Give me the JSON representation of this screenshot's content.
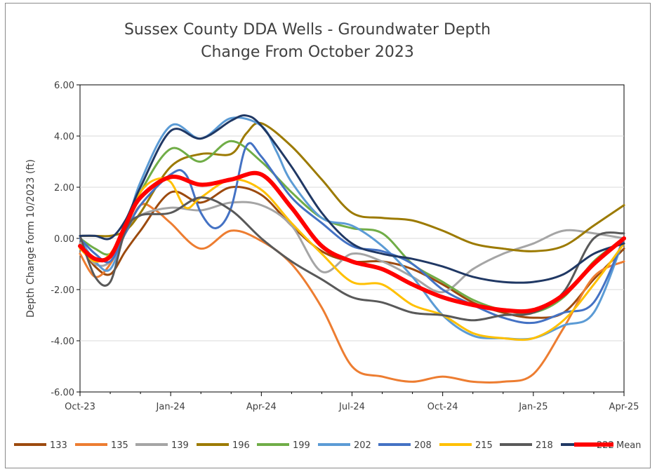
{
  "chart_data": {
    "type": "line",
    "title_line1": "Sussex County DDA Wells - Groundwater Depth",
    "title_line2": "Change From October 2023",
    "ylabel": "Depth Change form 10/2023 (ft)",
    "xlabel": "",
    "ylim": [
      -6,
      6
    ],
    "yticks": [
      6,
      4,
      2,
      0,
      -2,
      -4,
      -6
    ],
    "ytick_labels": [
      "6.00",
      "4.00",
      "2.00",
      "0.00",
      "-2.00",
      "-4.00",
      "-6.00"
    ],
    "xlim": [
      0,
      18
    ],
    "xticks": [
      0,
      3,
      6,
      9,
      12,
      15,
      18
    ],
    "xtick_labels": [
      "Oct-23",
      "Jan-24",
      "Apr-24",
      "Jul-24",
      "Oct-24",
      "Jan-25",
      "Apr-25"
    ],
    "grid": "horizontal",
    "legend_position": "bottom",
    "series": [
      {
        "name": "133",
        "color": "#9C4A0E",
        "width": 3,
        "x": [
          0,
          0.5,
          1,
          1.5,
          2,
          3,
          4,
          5,
          6,
          7,
          8,
          9,
          10,
          11,
          12,
          13,
          14,
          15,
          16,
          17,
          18
        ],
        "y": [
          -0.3,
          -1.1,
          -1.4,
          -0.5,
          0.3,
          1.8,
          1.4,
          2.0,
          1.7,
          0.5,
          -0.5,
          -0.9,
          -0.9,
          -1.2,
          -1.8,
          -2.5,
          -2.9,
          -3.1,
          -2.9,
          -1.6,
          -0.4
        ]
      },
      {
        "name": "135",
        "color": "#ED7D31",
        "width": 3,
        "x": [
          0,
          0.5,
          1,
          1.5,
          2,
          2.5,
          3,
          4,
          5,
          6,
          7,
          8,
          9,
          10,
          11,
          12,
          13,
          14,
          15,
          16,
          17,
          18
        ],
        "y": [
          -0.6,
          -1.5,
          -1.0,
          0.2,
          1.3,
          1.1,
          0.6,
          -0.4,
          0.3,
          -0.1,
          -1.0,
          -2.7,
          -5.0,
          -5.4,
          -5.6,
          -5.4,
          -5.6,
          -5.6,
          -5.3,
          -3.5,
          -1.5,
          -0.9
        ]
      },
      {
        "name": "139",
        "color": "#A5A5A5",
        "width": 3,
        "x": [
          0,
          0.5,
          1,
          1.5,
          2,
          3,
          4,
          5,
          6,
          7,
          8,
          9,
          10,
          11,
          12,
          13,
          14,
          15,
          16,
          17,
          18
        ],
        "y": [
          -0.2,
          -1.0,
          -0.9,
          0.2,
          0.9,
          1.2,
          1.1,
          1.4,
          1.3,
          0.5,
          -1.3,
          -0.6,
          -0.9,
          -1.5,
          -2.1,
          -1.2,
          -0.6,
          -0.2,
          0.3,
          0.2,
          0.0
        ]
      },
      {
        "name": "196",
        "color": "#9C7A00",
        "width": 3,
        "x": [
          0,
          0.5,
          1,
          1.5,
          2,
          3,
          4,
          5,
          5.5,
          6,
          7,
          8,
          9,
          10,
          11,
          12,
          13,
          14,
          15,
          16,
          17,
          18
        ],
        "y": [
          0.1,
          0.1,
          0.1,
          0.3,
          1.0,
          2.8,
          3.3,
          3.3,
          4.1,
          4.5,
          3.6,
          2.3,
          1.0,
          0.8,
          0.7,
          0.3,
          -0.2,
          -0.4,
          -0.5,
          -0.3,
          0.5,
          1.3
        ]
      },
      {
        "name": "199",
        "color": "#70AD47",
        "width": 3,
        "x": [
          0,
          0.5,
          1,
          1.5,
          2,
          3,
          4,
          5,
          6,
          7,
          8,
          9,
          10,
          11,
          12,
          13,
          14,
          15,
          16,
          17,
          18
        ],
        "y": [
          0.0,
          -0.4,
          -0.6,
          0.3,
          1.8,
          3.5,
          3.0,
          3.8,
          3.0,
          1.8,
          0.8,
          0.4,
          0.2,
          -1.0,
          -1.7,
          -2.4,
          -2.8,
          -2.9,
          -2.3,
          -0.9,
          0.0
        ]
      },
      {
        "name": "202",
        "color": "#5B9BD5",
        "width": 3,
        "x": [
          0,
          0.5,
          1,
          1.5,
          2,
          3,
          4,
          5,
          6,
          6.5,
          7,
          8,
          9,
          10,
          11,
          12,
          13,
          14,
          15,
          16,
          17,
          18
        ],
        "y": [
          0.0,
          -0.9,
          -1.2,
          0.3,
          2.2,
          4.4,
          3.9,
          4.7,
          4.4,
          3.4,
          2.2,
          0.8,
          0.5,
          -0.3,
          -1.5,
          -3.0,
          -3.8,
          -3.9,
          -3.9,
          -3.4,
          -2.9,
          0.0
        ]
      },
      {
        "name": "208",
        "color": "#4472C4",
        "width": 3,
        "x": [
          0,
          0.5,
          1,
          1.5,
          2,
          3,
          3.5,
          4,
          4.5,
          5,
          5.5,
          6,
          7,
          8,
          9,
          10,
          11,
          12,
          13,
          14,
          15,
          16,
          17,
          18
        ],
        "y": [
          0.0,
          -0.6,
          -0.9,
          0.2,
          1.3,
          2.5,
          2.5,
          1.0,
          0.4,
          1.2,
          3.6,
          3.2,
          1.6,
          0.6,
          -0.3,
          -0.5,
          -1.0,
          -2.0,
          -2.6,
          -3.1,
          -3.3,
          -2.9,
          -2.5,
          0.0
        ]
      },
      {
        "name": "215",
        "color": "#FFC000",
        "width": 3,
        "x": [
          0,
          0.5,
          1,
          1.5,
          2,
          2.5,
          3,
          3.5,
          4,
          5,
          6,
          7,
          8,
          9,
          10,
          11,
          12,
          13,
          14,
          15,
          16,
          17,
          18
        ],
        "y": [
          -0.4,
          -0.9,
          -0.6,
          0.5,
          1.8,
          2.3,
          2.2,
          1.2,
          1.6,
          2.3,
          1.9,
          0.6,
          -0.6,
          -1.7,
          -1.8,
          -2.6,
          -3.0,
          -3.7,
          -3.9,
          -3.9,
          -3.2,
          -1.8,
          -0.2
        ]
      },
      {
        "name": "218",
        "color": "#595959",
        "width": 3,
        "x": [
          0,
          0.5,
          1,
          1.5,
          2,
          3,
          4,
          5,
          6,
          7,
          8,
          9,
          10,
          11,
          12,
          13,
          14,
          15,
          16,
          17,
          18
        ],
        "y": [
          0.1,
          -1.5,
          -1.7,
          0.3,
          0.9,
          1.0,
          1.6,
          1.1,
          0.0,
          -0.9,
          -1.6,
          -2.3,
          -2.5,
          -2.9,
          -3.0,
          -3.2,
          -3.0,
          -2.9,
          -2.1,
          0.0,
          0.2
        ]
      },
      {
        "name": "222",
        "color": "#203864",
        "width": 3,
        "x": [
          0,
          0.5,
          1,
          1.5,
          2,
          3,
          4,
          5,
          5.5,
          6,
          7,
          8,
          9,
          10,
          11,
          12,
          13,
          14,
          15,
          16,
          17,
          18
        ],
        "y": [
          0.1,
          0.1,
          0.0,
          0.7,
          2.0,
          4.2,
          3.9,
          4.6,
          4.8,
          4.4,
          2.8,
          1.0,
          -0.2,
          -0.6,
          -0.8,
          -1.1,
          -1.5,
          -1.7,
          -1.7,
          -1.4,
          -0.6,
          -0.2
        ]
      },
      {
        "name": "Mean",
        "color": "#FF0000",
        "width": 6,
        "x": [
          0,
          0.5,
          1,
          1.5,
          2,
          3,
          4,
          5,
          6,
          7,
          8,
          9,
          10,
          11,
          12,
          13,
          14,
          15,
          16,
          17,
          18
        ],
        "y": [
          -0.3,
          -0.8,
          -0.7,
          0.5,
          1.6,
          2.4,
          2.1,
          2.3,
          2.5,
          1.2,
          -0.3,
          -0.9,
          -1.2,
          -1.8,
          -2.3,
          -2.6,
          -2.8,
          -2.8,
          -2.2,
          -1.0,
          0.0
        ]
      }
    ]
  }
}
